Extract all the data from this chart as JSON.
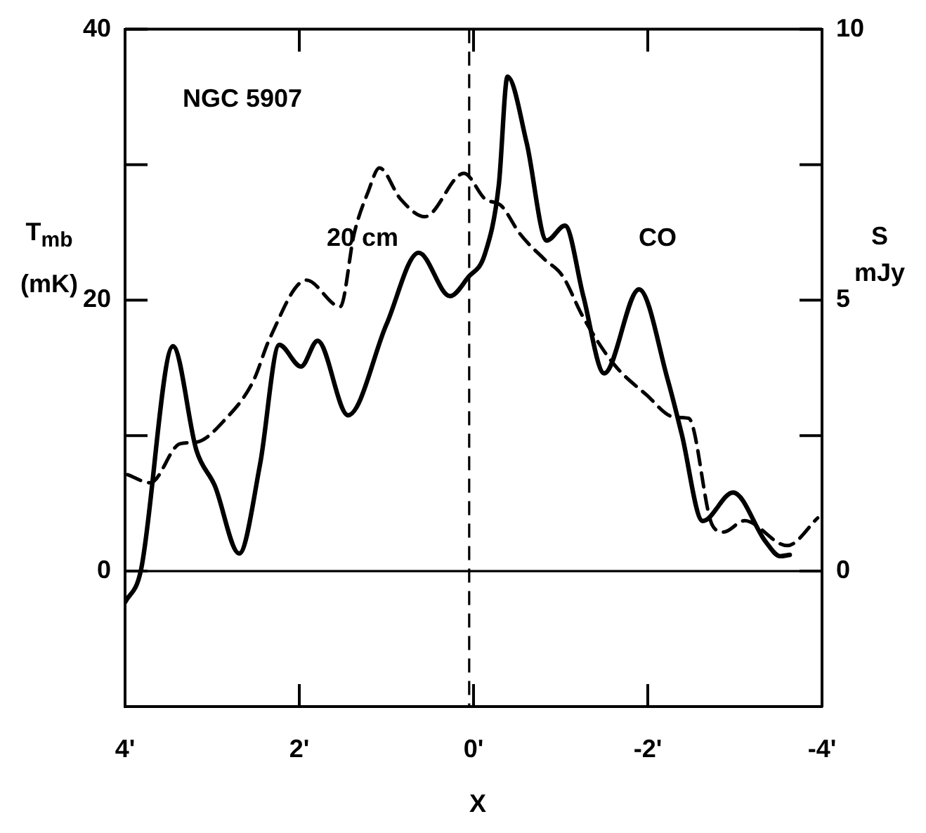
{
  "chart_data": {
    "type": "line",
    "title": "NGC 5907",
    "xlabel": "X",
    "ylabel": "T$_{mb}$ (mK)",
    "y2label": "S mJy",
    "xlim": [
      4,
      -4
    ],
    "xticks": [
      {
        "value": 4,
        "label": "4'"
      },
      {
        "value": 2,
        "label": "2'"
      },
      {
        "value": 0,
        "label": "0'"
      },
      {
        "value": -2,
        "label": "-2'"
      },
      {
        "value": -4,
        "label": "-4'"
      }
    ],
    "ylim": [
      -10,
      40
    ],
    "yticks": [
      0,
      {
        "value": 10,
        "label": null
      },
      20,
      {
        "value": 30,
        "label": null
      },
      40
    ],
    "y2lim": [
      -2.5,
      10
    ],
    "y2ticks": [
      0,
      {
        "value": 2.5,
        "label": null
      },
      5,
      {
        "value": 7.5,
        "label": null
      },
      10
    ],
    "series": [
      {
        "name": "CO",
        "color": "#000000",
        "line_style": "solid",
        "x": [
          4,
          3.82,
          3.45,
          3.18,
          2.97,
          2.69,
          2.45,
          2.23,
          1.98,
          1.79,
          1.44,
          1.0,
          0.63,
          0.27,
          0.06,
          -0.13,
          -0.29,
          -0.39,
          -0.61,
          -0.84,
          -1.05,
          -1.26,
          -1.5,
          -1.9,
          -2.23,
          -2.39,
          -2.63,
          -2.98,
          -3.35,
          -3.52,
          -3.63
        ],
        "values": [
          -2.3,
          0,
          16.6,
          8.9,
          6.3,
          1.3,
          7.9,
          16.7,
          15.1,
          17.0,
          11.5,
          18.2,
          23.5,
          20.3,
          21.7,
          23.4,
          28.5,
          36.5,
          31.6,
          24.4,
          25.5,
          20.3,
          14.6,
          20.8,
          14.1,
          10.1,
          3.7,
          5.8,
          2.2,
          1.1,
          1.2
        ]
      },
      {
        "name": "20 cm",
        "color": "#000000",
        "line_style": "dashed",
        "axis": "y2",
        "x": [
          3.97,
          3.71,
          3.37,
          3.18,
          2.85,
          2.53,
          2.34,
          1.92,
          1.53,
          1.37,
          1.21,
          1.08,
          0.84,
          0.56,
          0.11,
          -0.13,
          -0.32,
          -0.53,
          -0.81,
          -1.02,
          -1.26,
          -1.61,
          -1.98,
          -2.31,
          -2.47,
          -2.74,
          -2.87,
          -3.11,
          -3.6,
          -3.95
        ],
        "values": [
          1.78,
          1.63,
          2.35,
          2.38,
          2.8,
          3.5,
          4.29,
          5.37,
          4.88,
          6.23,
          7.0,
          7.44,
          6.87,
          6.54,
          7.34,
          6.87,
          6.74,
          6.23,
          5.76,
          5.45,
          4.68,
          3.82,
          3.26,
          2.84,
          2.82,
          0.85,
          0.72,
          0.93,
          0.47,
          0.98
        ]
      }
    ],
    "ref_lines": [
      {
        "axis": "y",
        "value": 0,
        "line_style": "solid",
        "color": "#000000"
      },
      {
        "axis": "x",
        "value": 0.05,
        "line_style": "dashed",
        "color": "#000000"
      }
    ]
  }
}
